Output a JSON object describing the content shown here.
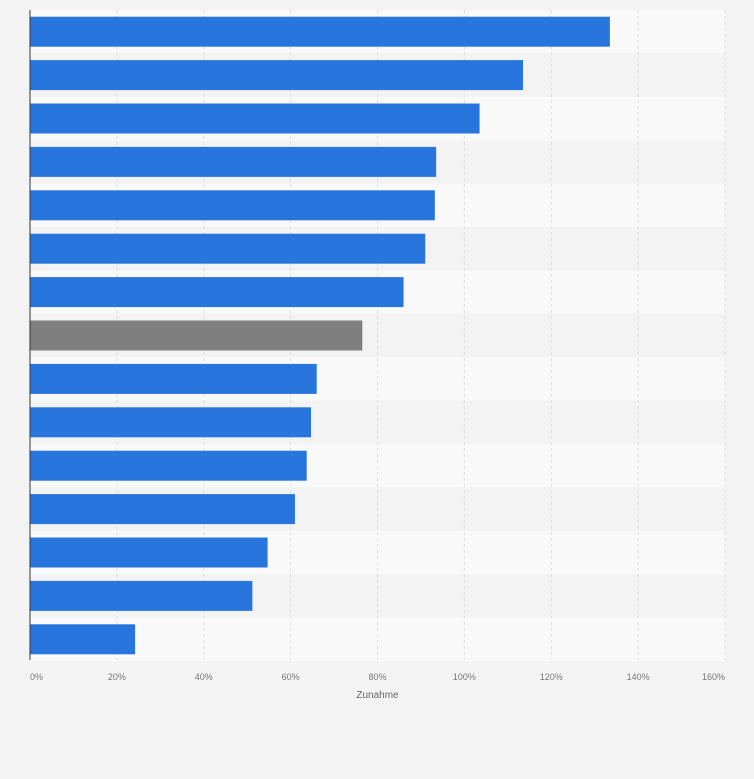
{
  "chart_data": {
    "type": "bar",
    "orientation": "horizontal",
    "title": "",
    "xlabel": "Zunahme",
    "ylabel": "",
    "xlim": [
      0,
      160
    ],
    "x_ticks": [
      "0%",
      "20%",
      "40%",
      "60%",
      "80%",
      "100%",
      "120%",
      "140%",
      "160%"
    ],
    "grid": true,
    "values": [
      133.5,
      113.5,
      103.5,
      93.5,
      93.2,
      91,
      86,
      76.5,
      66,
      64.7,
      63.7,
      61,
      54.7,
      51.2,
      24.2
    ],
    "highlight_index": 7,
    "colors": {
      "bar": "#2876dd",
      "highlight": "#7f7f7f",
      "background": "#f3f3f3",
      "row_light": "#f9f9f9",
      "row_dark": "#f3f3f3",
      "grid": "#dddddd",
      "axis": "#333333"
    }
  }
}
